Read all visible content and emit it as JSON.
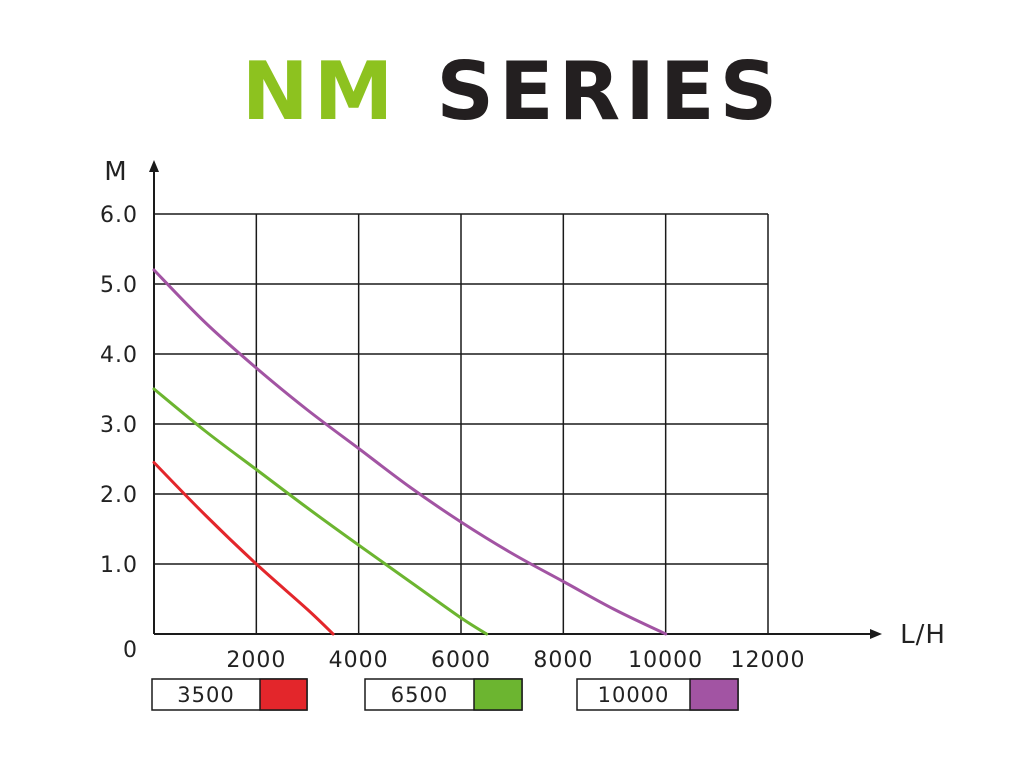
{
  "title": {
    "part1": "NM",
    "part2": "SERIES",
    "part1_color": "#8dc21f",
    "part2_color": "#231f20"
  },
  "chart_data": {
    "type": "line",
    "title": "NM SERIES",
    "xlabel": "L/H",
    "ylabel": "M",
    "xlim": [
      0,
      12000
    ],
    "ylim": [
      0,
      6.0
    ],
    "x_ticks": [
      "2000",
      "4000",
      "6000",
      "8000",
      "10000",
      "12000"
    ],
    "x_tick_values": [
      2000,
      4000,
      6000,
      8000,
      10000,
      12000
    ],
    "y_ticks": [
      "0",
      "1.0",
      "2.0",
      "3.0",
      "4.0",
      "5.0",
      "6.0"
    ],
    "y_tick_values": [
      0,
      1,
      2,
      3,
      4,
      5,
      6
    ],
    "grid": true,
    "legend_placement": "bottom",
    "series": [
      {
        "name": "3500",
        "color": "#e3262b",
        "points": [
          [
            0,
            2.45
          ],
          [
            1000,
            1.7
          ],
          [
            2000,
            1.0
          ],
          [
            3000,
            0.35
          ],
          [
            3500,
            0
          ]
        ]
      },
      {
        "name": "6500",
        "color": "#6cb530",
        "points": [
          [
            0,
            3.5
          ],
          [
            1000,
            2.9
          ],
          [
            2000,
            2.35
          ],
          [
            3000,
            1.8
          ],
          [
            4000,
            1.27
          ],
          [
            5000,
            0.75
          ],
          [
            6000,
            0.23
          ],
          [
            6500,
            0
          ]
        ]
      },
      {
        "name": "10000",
        "color": "#a254a3",
        "points": [
          [
            0,
            5.2
          ],
          [
            1000,
            4.45
          ],
          [
            2000,
            3.8
          ],
          [
            3000,
            3.2
          ],
          [
            4000,
            2.65
          ],
          [
            5000,
            2.1
          ],
          [
            6000,
            1.6
          ],
          [
            7000,
            1.15
          ],
          [
            8000,
            0.75
          ],
          [
            9000,
            0.35
          ],
          [
            10000,
            0
          ]
        ]
      }
    ]
  }
}
